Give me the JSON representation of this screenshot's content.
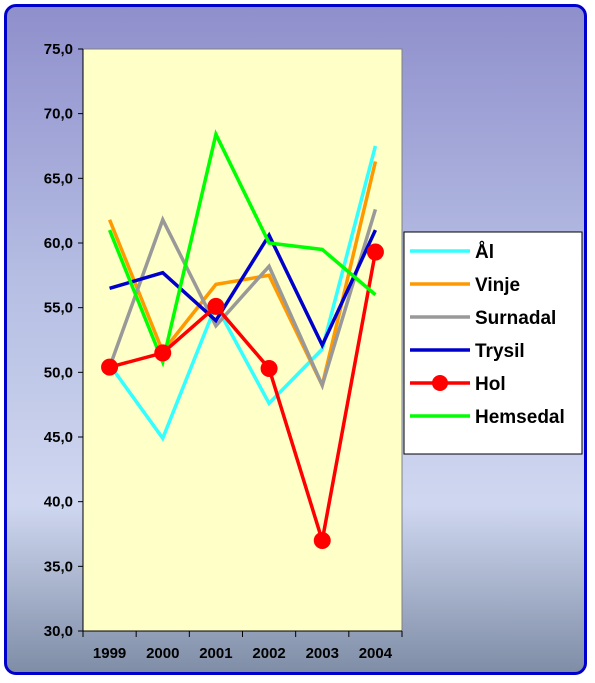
{
  "chart_data": {
    "type": "line",
    "title": "",
    "xlabel": "",
    "ylabel": "",
    "categories": [
      "1999",
      "2000",
      "2001",
      "2002",
      "2003",
      "2004"
    ],
    "ylim": [
      30,
      75
    ],
    "yticks": [
      "30,0",
      "35,0",
      "40,0",
      "45,0",
      "50,0",
      "55,0",
      "60,0",
      "65,0",
      "70,0",
      "75,0"
    ],
    "grid": false,
    "legend_position": "right",
    "plot_background": "#ffffc8",
    "series": [
      {
        "name": "Ål",
        "color": "#33ffff",
        "marker": false,
        "values": [
          50.6,
          44.9,
          55.2,
          47.6,
          51.8,
          67.5
        ]
      },
      {
        "name": "Vinje",
        "color": "#ff9900",
        "marker": false,
        "values": [
          61.8,
          51.6,
          56.8,
          57.5,
          49.0,
          66.3
        ]
      },
      {
        "name": "Surnadal",
        "color": "#999999",
        "marker": false,
        "values": [
          50.4,
          61.8,
          53.6,
          58.2,
          49.0,
          62.6
        ]
      },
      {
        "name": "Trysil",
        "color": "#0000cc",
        "marker": false,
        "values": [
          56.5,
          57.7,
          54.0,
          60.6,
          52.1,
          61.0
        ]
      },
      {
        "name": "Hol",
        "color": "#ff0000",
        "marker": true,
        "values": [
          50.4,
          51.5,
          55.1,
          50.3,
          37.0,
          59.3
        ]
      },
      {
        "name": "Hemsedal",
        "color": "#00ff00",
        "marker": false,
        "values": [
          61.0,
          50.8,
          68.4,
          60.0,
          59.5,
          56.0
        ]
      }
    ]
  }
}
